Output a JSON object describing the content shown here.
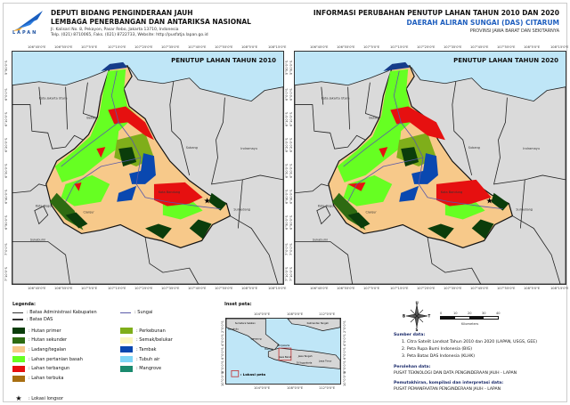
{
  "header": {
    "logo_text": "LAPAN",
    "org_line1": "DEPUTI BIDANG PENGINDERAAN JAUH",
    "org_line2": "LEMBAGA PENERBANGAN DAN ANTARIKSA NASIONAL",
    "address": "Jl. Kalisari No. 8, Pekayon, Pasar Rebo, Jakarta 13710, Indonesia",
    "contact": "Telp. (021) 8710065, Faks. (021) 8722733, Website: http://pusfatja.lapan.go.id",
    "title": "INFORMASI PERUBAHAN PENUTUP LAHAN TAHUN 2010 DAN 2020",
    "subtitle": "DAERAH ALIRAN SUNGAI (DAS) CITARUM",
    "region": "PROVINSI JAWA BARAT DAN SEKITARNYA"
  },
  "maps": [
    {
      "title": "PENUTUP LAHAN TAHUN 2010"
    },
    {
      "title": "PENUTUP LAHAN TAHUN 2020"
    }
  ],
  "lon_ticks": [
    "106°45'0\"E",
    "106°55'0\"E",
    "107°5'0\"E",
    "107°15'0\"E",
    "107°25'0\"E",
    "107°35'0\"E",
    "107°45'0\"E",
    "107°55'0\"E",
    "108°5'0\"E",
    "108°15'0\"E"
  ],
  "lat_ticks": [
    "5°50'0\"S",
    "6°0'0\"S",
    "6°10'0\"S",
    "6°20'0\"S",
    "6°30'0\"S",
    "6°40'0\"S",
    "6°50'0\"S",
    "7°0'0\"S",
    "7°10'0\"S"
  ],
  "places": {
    "jakarta": "Kota Jakarta Utara",
    "bekasi": "Bekasi",
    "bogor": "Kota Bogor",
    "subang": "Subang",
    "indramayu": "Indramayu",
    "sumedang": "Sumedang",
    "sukabumi": "Sukabumi",
    "bandung": "Kota Bandung",
    "cianjur": "Cianjur"
  },
  "legend": {
    "heading": "Legenda:",
    "lines": [
      {
        "label": ": Batas Administrasi Kabupaten"
      },
      {
        "label": ": Batas DAS"
      },
      {
        "label": ": Sungai",
        "color": "#5a5aa8"
      }
    ],
    "classes": [
      {
        "label": ": Hutan primer",
        "color": "#0b3d0b"
      },
      {
        "label": ": Hutan sekunder",
        "color": "#2e6b12"
      },
      {
        "label": ": Ladang/tegalan",
        "color": "#f7c98a"
      },
      {
        "label": ": Lahan pertanian basah",
        "color": "#66ff22"
      },
      {
        "label": ": Lahan terbangun",
        "color": "#e61010"
      },
      {
        "label": ": Lahan terbuka",
        "color": "#a86f12"
      },
      {
        "label": ": Perkebunan",
        "color": "#7fae1a"
      },
      {
        "label": ": Semak/belukar",
        "color": "#fbf6c0"
      },
      {
        "label": ": Tambak",
        "color": "#0a48b0"
      },
      {
        "label": ": Tubuh air",
        "color": "#7fd7f7"
      },
      {
        "label": ": Mangrove",
        "color": "#1a8a6e"
      }
    ],
    "landslide": ": Lokasi longsor"
  },
  "inset": {
    "heading": "Inset peta:",
    "lon_ticks": [
      "104°0'0\"E",
      "108°0'0\"E",
      "112°0'0\"E"
    ],
    "lat_ticks": [
      "2°0'0\"S",
      "4°0'0\"S",
      "6°0'0\"S",
      "8°0'0\"S",
      "10°0'0\"S"
    ],
    "labels": [
      "Sumatera Selatan",
      "Bengkulu",
      "Lampung",
      "Banten",
      "DKI Jakarta",
      "Jawa Barat",
      "Jawa Tengah",
      "DI Yogyakarta",
      "Jawa Timur",
      "Kalimantan Tengah"
    ],
    "legend_label": ": Lokasi peta"
  },
  "compass": {
    "n": "U",
    "s": "S",
    "e": "T",
    "w": "B"
  },
  "scale": {
    "ticks": [
      "0",
      "10",
      "20",
      "30",
      "40"
    ],
    "unit": "Kilometers"
  },
  "sources": {
    "heading": "Sumber data:",
    "items": [
      "1. Citra Satelit Landsat Tahun 2010 dan 2020 (LAPAN, USGS, GEE)",
      "2. Peta Rupa Bumi Indonesia (BIG)",
      "3. Peta Batas DAS Indonesia (KLHK)"
    ],
    "processing_heading": "Perolehan data:",
    "processing": "PUSAT TEKNOLOGI DAN DATA PENGINDERAAN JAUH - LAPAN",
    "interp_heading": "Pemutakhiran, kompilasi  dan interpretasi data:",
    "interp": "PUSAT PEMANFAATAN PENGINDERAAN JAUH - LAPAN"
  }
}
